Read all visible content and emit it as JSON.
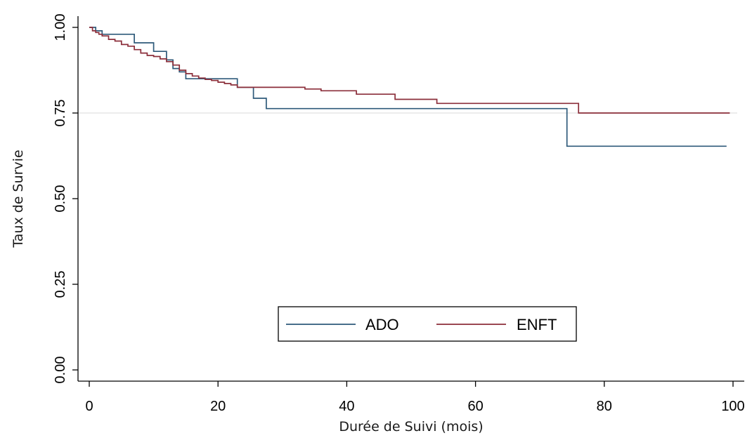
{
  "chart_data": {
    "type": "line",
    "title": "",
    "xlabel": "Durée de Suivi (mois)",
    "ylabel": "Taux de Survie",
    "xlim": [
      0,
      100
    ],
    "ylim": [
      0,
      1
    ],
    "x_ticks": [
      0,
      20,
      40,
      60,
      80,
      100
    ],
    "x_tick_labels": [
      "0",
      "20",
      "40",
      "60",
      "80",
      "100"
    ],
    "y_ticks": [
      0,
      0.25,
      0.5,
      0.75,
      1
    ],
    "y_tick_labels": [
      "0.00",
      "0.25",
      "0.50",
      "0.75",
      "1.00"
    ],
    "reference_line_y": 0.75,
    "grid": false,
    "legend_position": "bottom-center",
    "step": true,
    "series": [
      {
        "name": "ADO",
        "color": "#2e5a7a",
        "x": [
          0,
          1,
          2,
          7,
          10,
          12,
          13,
          14,
          15,
          23,
          25.5,
          27.5,
          74.2,
          99
        ],
        "y": [
          1.0,
          0.99,
          0.98,
          0.955,
          0.93,
          0.905,
          0.88,
          0.87,
          0.85,
          0.825,
          0.793,
          0.763,
          0.653,
          0.653
        ]
      },
      {
        "name": "ENFT",
        "color": "#8b2e3a",
        "x": [
          0,
          0.5,
          1,
          1.5,
          2,
          3,
          4,
          5,
          6,
          7,
          8,
          9,
          10,
          11,
          12,
          13,
          14,
          15,
          16,
          17,
          18,
          19,
          20,
          21,
          22,
          23,
          33.5,
          36,
          41.5,
          47.5,
          54,
          76,
          99.5
        ],
        "y": [
          1.0,
          0.99,
          0.985,
          0.98,
          0.975,
          0.965,
          0.96,
          0.95,
          0.945,
          0.935,
          0.925,
          0.918,
          0.915,
          0.908,
          0.9,
          0.89,
          0.875,
          0.865,
          0.858,
          0.852,
          0.848,
          0.845,
          0.84,
          0.836,
          0.832,
          0.825,
          0.82,
          0.815,
          0.805,
          0.79,
          0.778,
          0.75,
          0.75
        ]
      }
    ]
  }
}
